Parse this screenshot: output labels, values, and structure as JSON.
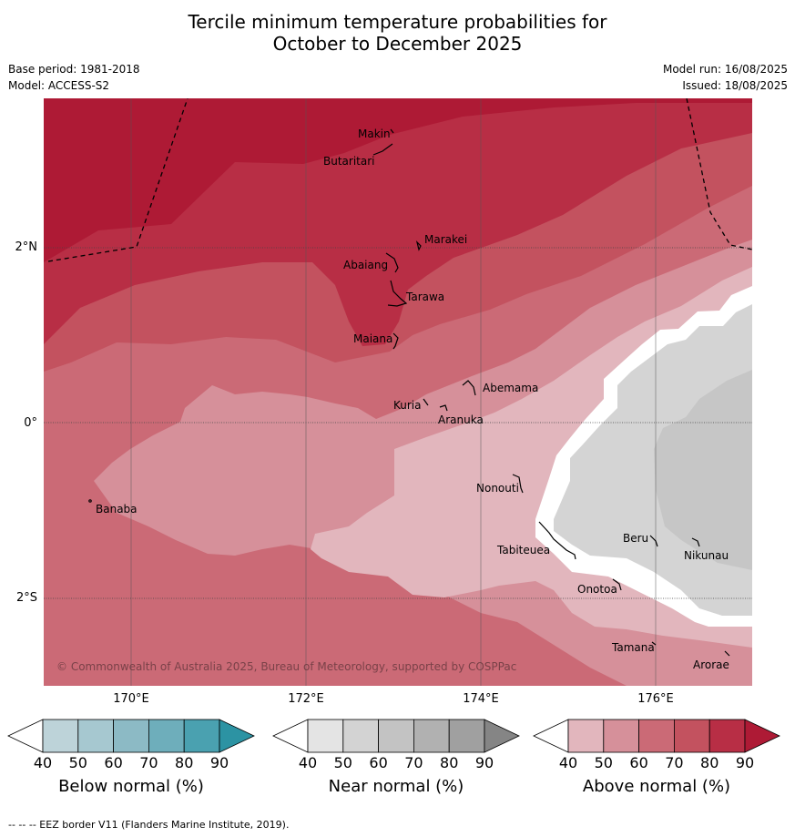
{
  "title_line1": "Tercile minimum temperature probabilities for",
  "title_line2": "October to December 2025",
  "left_meta": [
    "Base period: 1981-2018",
    "Model: ACCESS-S2"
  ],
  "right_meta": [
    "Model run: 16/08/2025",
    "Issued: 18/08/2025"
  ],
  "lat_labels": [
    "2°N",
    "0°",
    "2°S"
  ],
  "lon_labels": [
    "170°E",
    "172°E",
    "174°E",
    "176°E"
  ],
  "places": [
    "Makin",
    "Butaritari",
    "Marakei",
    "Abaiang",
    "Tarawa",
    "Maiana",
    "Abemama",
    "Kuria",
    "Aranuka",
    "Nonouti",
    "Banaba",
    "Beru",
    "Nikunau",
    "Tabiteuea",
    "Onotoa",
    "Tamana",
    "Arorae"
  ],
  "copyright": "© Commonwealth of Australia 2025, Bureau of Meteorology, supported by COSPPac",
  "colorbars": [
    {
      "label": "Below normal (%)",
      "ticks": [
        "40",
        "50",
        "60",
        "70",
        "80",
        "90"
      ],
      "colors": [
        "#ffffff",
        "#bdd3d9",
        "#a6c8d0",
        "#8cbac5",
        "#6eaebb",
        "#4aa1b0",
        "#2c93a3"
      ]
    },
    {
      "label": "Near normal (%)",
      "ticks": [
        "40",
        "50",
        "60",
        "70",
        "80",
        "90"
      ],
      "colors": [
        "#ffffff",
        "#e4e4e4",
        "#d3d3d3",
        "#c3c3c3",
        "#b1b1b1",
        "#a0a0a0",
        "#858585"
      ]
    },
    {
      "label": "Above normal (%)",
      "ticks": [
        "40",
        "50",
        "60",
        "70",
        "80",
        "90"
      ],
      "colors": [
        "#ffffff",
        "#e2b6bd",
        "#d6909a",
        "#cb6a76",
        "#c3525f",
        "#b82e45",
        "#ae1a35"
      ]
    }
  ],
  "footer": "--  --  -- EEZ border V11 (Flanders Marine Institute, 2019)."
}
